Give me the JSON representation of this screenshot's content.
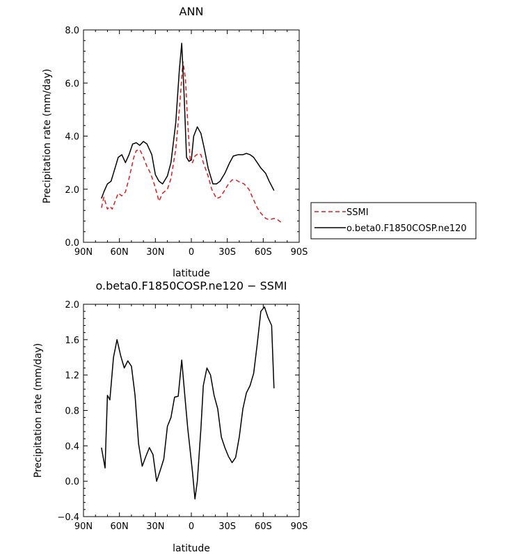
{
  "chart_data": [
    {
      "type": "line",
      "title": "ANN",
      "xlabel": "latitude",
      "ylabel": "Precipitation rate (mm/day)",
      "xlim": [
        90,
        -90
      ],
      "ylim": [
        0,
        8
      ],
      "x_ticks": [
        90,
        60,
        30,
        0,
        -30,
        -60,
        -90
      ],
      "x_tick_labels": [
        "90N",
        "60N",
        "30N",
        "0",
        "30S",
        "60S",
        "90S"
      ],
      "y_ticks": [
        0,
        2,
        4,
        6,
        8
      ],
      "y_tick_labels": [
        "0.0",
        "2.0",
        "4.0",
        "6.0",
        "8.0"
      ],
      "legend": "right",
      "series": [
        {
          "name": "SSMI",
          "color": "#e41a1c",
          "dash": "dashed",
          "x": [
            75,
            73,
            70,
            68,
            66,
            64,
            61,
            58,
            55,
            52,
            50,
            48,
            46,
            43,
            40,
            37,
            34,
            31,
            27,
            24,
            20,
            17,
            13,
            10,
            7,
            5,
            3,
            1,
            -1,
            -3,
            -6,
            -8,
            -10,
            -14,
            -17,
            -21,
            -24,
            -27,
            -31,
            -34,
            -37,
            -41,
            -44,
            -48,
            -51,
            -55,
            -58,
            -62,
            -65,
            -69,
            -72,
            -75
          ],
          "y": [
            1.3,
            1.7,
            1.25,
            1.35,
            1.25,
            1.5,
            1.85,
            1.75,
            1.9,
            2.4,
            2.8,
            3.2,
            3.45,
            3.5,
            3.2,
            2.85,
            2.6,
            2.2,
            1.55,
            1.85,
            2.0,
            2.4,
            3.5,
            5.0,
            6.8,
            6.2,
            4.5,
            3.1,
            3.0,
            3.25,
            3.35,
            3.3,
            3.0,
            2.5,
            2.0,
            1.65,
            1.7,
            1.9,
            2.2,
            2.35,
            2.35,
            2.25,
            2.2,
            2.0,
            1.7,
            1.3,
            1.1,
            0.9,
            0.85,
            0.9,
            0.85,
            0.75
          ]
        },
        {
          "name": "o.beta0.F1850COSP.ne120",
          "color": "#000000",
          "dash": "solid",
          "x": [
            75,
            73,
            70,
            67,
            64,
            61,
            58,
            55,
            52,
            49,
            46,
            43,
            40,
            37,
            33,
            30,
            27,
            24,
            20,
            17,
            13,
            10,
            8,
            6,
            4,
            2,
            0,
            -2,
            -5,
            -8,
            -11,
            -14,
            -18,
            -21,
            -24,
            -28,
            -32,
            -35,
            -39,
            -43,
            -46,
            -49,
            -52,
            -55,
            -58,
            -62,
            -65,
            -69
          ],
          "y": [
            1.65,
            1.9,
            2.2,
            2.3,
            2.75,
            3.2,
            3.3,
            3.0,
            3.3,
            3.7,
            3.75,
            3.65,
            3.8,
            3.7,
            3.3,
            2.55,
            2.3,
            2.2,
            2.5,
            3.0,
            4.5,
            6.5,
            7.5,
            5.5,
            3.2,
            3.05,
            3.1,
            4.0,
            4.35,
            4.1,
            3.5,
            2.8,
            2.2,
            2.2,
            2.3,
            2.6,
            3.0,
            3.25,
            3.3,
            3.3,
            3.35,
            3.3,
            3.2,
            3.0,
            2.8,
            2.6,
            2.3,
            1.95
          ]
        }
      ]
    },
    {
      "type": "line",
      "title": "o.beta0.F1850COSP.ne120 − SSMI",
      "xlabel": "latitude",
      "ylabel": "Precipitation rate (mm/day)",
      "xlim": [
        90,
        -90
      ],
      "ylim": [
        -0.4,
        2.0
      ],
      "x_ticks": [
        90,
        60,
        30,
        0,
        -30,
        -60,
        -90
      ],
      "x_tick_labels": [
        "90N",
        "60N",
        "30N",
        "0",
        "30S",
        "60S",
        "90S"
      ],
      "y_ticks": [
        -0.4,
        0.0,
        0.4,
        0.8,
        1.2,
        1.6,
        2.0
      ],
      "y_tick_labels": [
        "−0.4",
        "0.0",
        "0.4",
        "0.8",
        "1.2",
        "1.6",
        "2.0"
      ],
      "series": [
        {
          "name": "",
          "color": "#000000",
          "dash": "solid",
          "x": [
            75,
            72,
            70,
            68,
            65,
            62,
            59,
            56,
            53,
            50,
            47,
            44,
            41,
            38,
            35,
            32,
            29,
            26,
            23,
            20,
            17,
            14,
            11,
            8,
            5,
            3,
            1,
            -1,
            -3,
            -5,
            -8,
            -10,
            -13,
            -16,
            -19,
            -22,
            -25,
            -28,
            -31,
            -34,
            -37,
            -40,
            -43,
            -46,
            -49,
            -52,
            -55,
            -58,
            -61,
            -64,
            -67,
            -69
          ],
          "y": [
            0.38,
            0.15,
            0.97,
            0.92,
            1.4,
            1.6,
            1.42,
            1.28,
            1.36,
            1.3,
            0.97,
            0.42,
            0.17,
            0.28,
            0.38,
            0.3,
            0.0,
            0.12,
            0.25,
            0.62,
            0.72,
            0.95,
            0.96,
            1.37,
            0.9,
            0.6,
            0.35,
            0.1,
            -0.2,
            0.0,
            0.6,
            1.08,
            1.28,
            1.2,
            0.97,
            0.82,
            0.5,
            0.38,
            0.28,
            0.21,
            0.27,
            0.5,
            0.82,
            1.0,
            1.08,
            1.22,
            1.55,
            1.92,
            1.97,
            1.85,
            1.76,
            1.05
          ]
        }
      ]
    }
  ]
}
